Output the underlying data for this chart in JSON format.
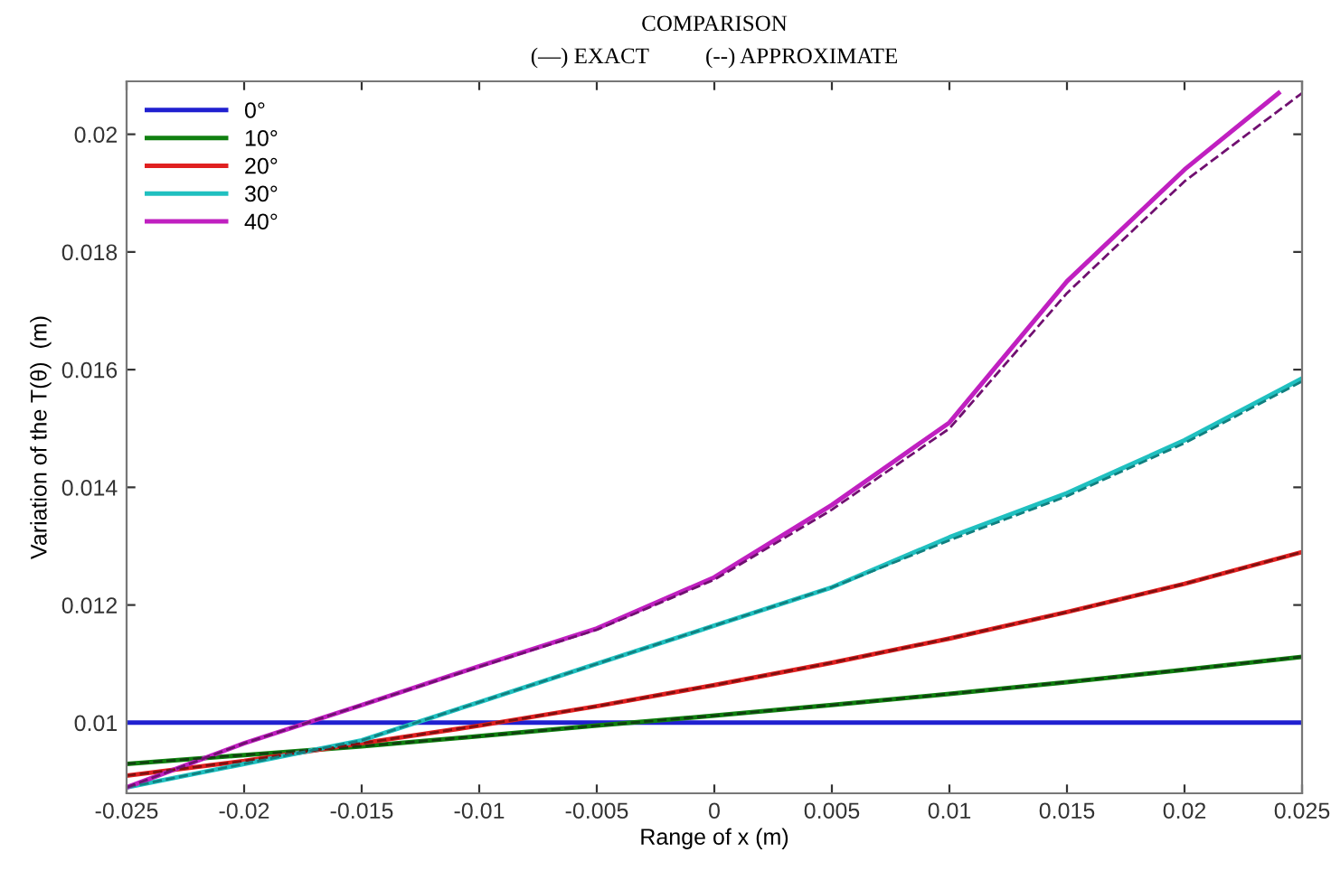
{
  "chart_data": {
    "type": "line",
    "title": "COMPARISON",
    "subtitle": "(—) EXACT          (--) APPROXIMATE",
    "xlabel": "Range of x (m)",
    "ylabel": "Variation of the T(θ)  (m)",
    "x": [
      -0.025,
      -0.02,
      -0.015,
      -0.01,
      -0.005,
      0,
      0.005,
      0.01,
      0.015,
      0.02,
      0.025
    ],
    "series": [
      {
        "name": "0°",
        "color": "#2020d0",
        "line_style": "solid",
        "values": [
          0.01,
          0.01,
          0.01,
          0.01,
          0.01,
          0.01,
          0.01,
          0.01,
          0.01,
          0.01,
          0.01
        ]
      },
      {
        "name": "10°",
        "color": "#108010",
        "line_style": "solid",
        "values": [
          0.0093,
          0.00945,
          0.0096,
          0.00977,
          0.00995,
          0.01012,
          0.0103,
          0.01049,
          0.01069,
          0.0109,
          0.01112
        ]
      },
      {
        "name": "20°",
        "color": "#e02020",
        "line_style": "solid",
        "values": [
          0.0091,
          0.00935,
          0.00965,
          0.00995,
          0.01028,
          0.01064,
          0.01102,
          0.01143,
          0.01188,
          0.01236,
          0.0129
        ]
      },
      {
        "name": "30°",
        "color": "#20c0c0",
        "line_style": "solid",
        "values": [
          0.0089,
          0.0093,
          0.0097,
          0.01035,
          0.011,
          0.01165,
          0.0123,
          0.01315,
          0.0139,
          0.0148,
          0.01585
        ]
      },
      {
        "name": "40°",
        "color": "#c020c0",
        "line_style": "solid",
        "x": [
          -0.025,
          -0.02,
          -0.015,
          -0.01,
          -0.005,
          0,
          0.005,
          0.01,
          0.015,
          0.02,
          0.024
        ],
        "values": [
          0.0089,
          0.00965,
          0.0103,
          0.01096,
          0.0116,
          0.01247,
          0.0137,
          0.0151,
          0.0175,
          0.0194,
          0.0207
        ]
      },
      {
        "color": "#104010",
        "line_style": "dashed",
        "values": [
          0.0093,
          0.00945,
          0.0096,
          0.00977,
          0.00995,
          0.01012,
          0.0103,
          0.01049,
          0.01069,
          0.0109,
          0.01112
        ]
      },
      {
        "color": "#801010",
        "line_style": "dashed",
        "values": [
          0.0091,
          0.00935,
          0.00965,
          0.00995,
          0.01028,
          0.01064,
          0.01102,
          0.01143,
          0.01188,
          0.01236,
          0.0129
        ]
      },
      {
        "color": "#108080",
        "line_style": "dashed",
        "values": [
          0.0089,
          0.0093,
          0.0097,
          0.01035,
          0.011,
          0.01165,
          0.0123,
          0.0131,
          0.01385,
          0.01475,
          0.0158
        ]
      },
      {
        "color": "#701070",
        "line_style": "dashed",
        "x": [
          -0.025,
          -0.02,
          -0.015,
          -0.01,
          -0.005,
          0,
          0.005,
          0.01,
          0.015,
          0.02,
          0.025
        ],
        "values": [
          0.0089,
          0.00965,
          0.0103,
          0.01095,
          0.01158,
          0.01243,
          0.01362,
          0.015,
          0.0173,
          0.0192,
          0.0207
        ]
      }
    ],
    "xlim": [
      -0.025,
      0.025
    ],
    "ylim": [
      0.0088,
      0.0209
    ],
    "xticks": [
      -0.025,
      -0.02,
      -0.015,
      -0.01,
      -0.005,
      0,
      0.005,
      0.01,
      0.015,
      0.02,
      0.025
    ],
    "yticks": [
      0.01,
      0.012,
      0.014,
      0.016,
      0.018,
      0.02
    ],
    "grid": false,
    "legend": "top left"
  }
}
